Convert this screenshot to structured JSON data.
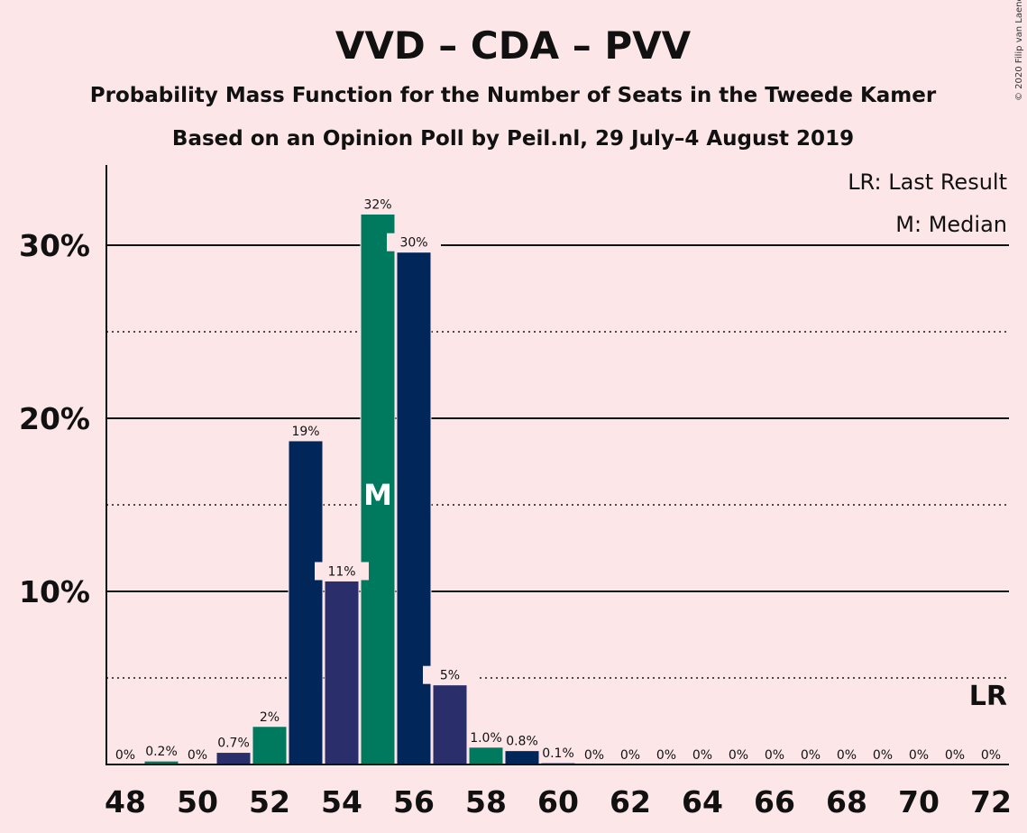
{
  "chart_data": {
    "type": "bar",
    "title": "VVD – CDA – PVV",
    "subtitle": "Probability Mass Function for the Number of Seats in the Tweede Kamer",
    "subtitle2": "Based on an Opinion Poll by Peil.nl, 29 July–4 August 2019",
    "copyright": "© 2020 Filip van Laenen",
    "legend": [
      "LR: Last Result",
      "M: Median"
    ],
    "lr_marker": "LR",
    "median_marker": "M",
    "median_seat": 55,
    "last_result_seat": 72,
    "ylim": [
      0,
      35
    ],
    "y_ticks": [
      {
        "value": 10,
        "label": "10%"
      },
      {
        "value": 20,
        "label": "20%"
      },
      {
        "value": 30,
        "label": "30%"
      }
    ],
    "y_dotted": [
      5,
      15,
      25
    ],
    "x_ticks": [
      48,
      50,
      52,
      54,
      56,
      58,
      60,
      62,
      64,
      66,
      68,
      70,
      72
    ],
    "colors": {
      "vvd": "#00265a",
      "cda": "#007a5e",
      "pvv": "#2a2e6a",
      "background": "#fce6e8"
    },
    "bars": [
      {
        "seats": 48,
        "value": 0,
        "label": "0%",
        "color": "vvd"
      },
      {
        "seats": 49,
        "value": 0.2,
        "label": "0.2%",
        "color": "cda"
      },
      {
        "seats": 50,
        "value": 0,
        "label": "0%",
        "color": "vvd"
      },
      {
        "seats": 51,
        "value": 0.7,
        "label": "0.7%",
        "color": "pvv"
      },
      {
        "seats": 52,
        "value": 2.2,
        "label": "2%",
        "color": "cda"
      },
      {
        "seats": 53,
        "value": 18.7,
        "label": "19%",
        "color": "vvd"
      },
      {
        "seats": 54,
        "value": 10.6,
        "label": "11%",
        "color": "pvv"
      },
      {
        "seats": 55,
        "value": 31.8,
        "label": "32%",
        "color": "cda"
      },
      {
        "seats": 56,
        "value": 29.6,
        "label": "30%",
        "color": "vvd"
      },
      {
        "seats": 57,
        "value": 4.6,
        "label": "5%",
        "color": "pvv"
      },
      {
        "seats": 58,
        "value": 1.0,
        "label": "1.0%",
        "color": "cda"
      },
      {
        "seats": 59,
        "value": 0.8,
        "label": "0.8%",
        "color": "vvd"
      },
      {
        "seats": 60,
        "value": 0.1,
        "label": "0.1%",
        "color": "pvv"
      },
      {
        "seats": 61,
        "value": 0,
        "label": "0%",
        "color": "cda"
      },
      {
        "seats": 62,
        "value": 0,
        "label": "0%",
        "color": "vvd"
      },
      {
        "seats": 63,
        "value": 0,
        "label": "0%",
        "color": "pvv"
      },
      {
        "seats": 64,
        "value": 0,
        "label": "0%",
        "color": "cda"
      },
      {
        "seats": 65,
        "value": 0,
        "label": "0%",
        "color": "vvd"
      },
      {
        "seats": 66,
        "value": 0,
        "label": "0%",
        "color": "pvv"
      },
      {
        "seats": 67,
        "value": 0,
        "label": "0%",
        "color": "cda"
      },
      {
        "seats": 68,
        "value": 0,
        "label": "0%",
        "color": "vvd"
      },
      {
        "seats": 69,
        "value": 0,
        "label": "0%",
        "color": "pvv"
      },
      {
        "seats": 70,
        "value": 0,
        "label": "0%",
        "color": "cda"
      },
      {
        "seats": 71,
        "value": 0,
        "label": "0%",
        "color": "vvd"
      },
      {
        "seats": 72,
        "value": 0,
        "label": "0%",
        "color": "pvv"
      }
    ]
  }
}
